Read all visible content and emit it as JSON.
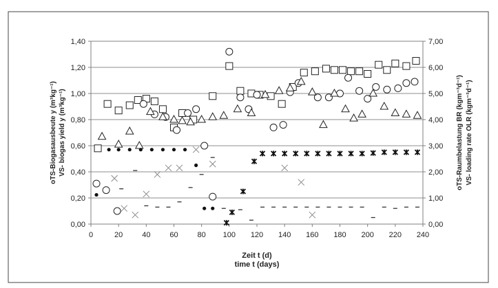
{
  "chart_data": {
    "type": "scatter",
    "xlabel_line1": "Zeit t (d)",
    "xlabel_line2": "time t (days)",
    "ylabel_left_line1": "oTS-Biogasausbeute y (m³kg⁻¹)",
    "ylabel_left_line2": "VS- biogas yield y (m³kg⁻¹)",
    "ylabel_right_line1": "oTS-Raumbelastung BR (kgm⁻³d⁻¹)",
    "ylabel_right_line2": "VS- loading rate OLR (kgm⁻³d⁻¹)",
    "xlim": [
      0,
      240
    ],
    "ylim_left": [
      0,
      1.4
    ],
    "ylim_right": [
      0,
      7
    ],
    "x_ticks": [
      0,
      20,
      40,
      60,
      80,
      100,
      120,
      140,
      160,
      180,
      200,
      220,
      240
    ],
    "y_ticks_left": [
      "0,00",
      "0,20",
      "0,40",
      "0,60",
      "0,80",
      "1,00",
      "1,20",
      "1,40"
    ],
    "y_ticks_right": [
      "0,00",
      "1,00",
      "2,00",
      "3,00",
      "4,00",
      "5,00",
      "6,00",
      "7,00"
    ],
    "grid": "horizontal",
    "series": [
      {
        "marker": "square",
        "axis": "left",
        "points": [
          [
            5,
            0.58
          ],
          [
            12,
            0.92
          ],
          [
            20,
            0.87
          ],
          [
            28,
            0.91
          ],
          [
            34,
            0.95
          ],
          [
            40,
            0.96
          ],
          [
            46,
            0.94
          ],
          [
            52,
            0.88
          ],
          [
            60,
            0.74
          ],
          [
            66,
            0.85
          ],
          [
            74,
            0.8
          ],
          [
            88,
            0.98
          ],
          [
            100,
            1.21
          ],
          [
            108,
            1.02
          ],
          [
            116,
            1.0
          ],
          [
            122,
            0.99
          ],
          [
            130,
            0.98
          ],
          [
            138,
            0.92
          ],
          [
            146,
            1.05
          ],
          [
            154,
            1.16
          ],
          [
            162,
            1.17
          ],
          [
            170,
            1.19
          ],
          [
            176,
            1.18
          ],
          [
            182,
            1.18
          ],
          [
            188,
            1.17
          ],
          [
            194,
            1.17
          ],
          [
            200,
            1.15
          ],
          [
            208,
            1.22
          ],
          [
            214,
            1.18
          ],
          [
            220,
            1.23
          ],
          [
            228,
            1.21
          ],
          [
            235,
            1.25
          ]
        ]
      },
      {
        "marker": "circle",
        "axis": "left",
        "points": [
          [
            4,
            0.31
          ],
          [
            11,
            0.26
          ],
          [
            19,
            0.1
          ],
          [
            38,
            0.92
          ],
          [
            46,
            0.84
          ],
          [
            54,
            0.82
          ],
          [
            62,
            0.72
          ],
          [
            70,
            0.85
          ],
          [
            76,
            0.88
          ],
          [
            82,
            0.6
          ],
          [
            88,
            0.21
          ],
          [
            100,
            1.32
          ],
          [
            108,
            0.97
          ],
          [
            114,
            0.88
          ],
          [
            120,
            0.99
          ],
          [
            132,
            0.74
          ],
          [
            139,
            0.76
          ],
          [
            144,
            1.01
          ],
          [
            150,
            1.08
          ],
          [
            164,
            0.97
          ],
          [
            172,
            0.97
          ],
          [
            180,
            1.0
          ],
          [
            186,
            1.12
          ],
          [
            194,
            1.02
          ],
          [
            200,
            0.96
          ],
          [
            206,
            1.05
          ],
          [
            214,
            1.03
          ],
          [
            222,
            1.04
          ],
          [
            228,
            1.08
          ],
          [
            234,
            1.09
          ]
        ]
      },
      {
        "marker": "triangle",
        "axis": "right",
        "points": [
          [
            8,
            3.35
          ],
          [
            20,
            3.05
          ],
          [
            28,
            3.55
          ],
          [
            35,
            3.0
          ],
          [
            43,
            4.3
          ],
          [
            52,
            4.1
          ],
          [
            60,
            4.0
          ],
          [
            66,
            3.95
          ],
          [
            72,
            3.9
          ],
          [
            80,
            4.0
          ],
          [
            88,
            4.1
          ],
          [
            96,
            4.15
          ],
          [
            106,
            4.4
          ],
          [
            116,
            4.25
          ],
          [
            126,
            4.95
          ],
          [
            136,
            5.1
          ],
          [
            144,
            5.2
          ],
          [
            152,
            5.45
          ],
          [
            160,
            5.05
          ],
          [
            168,
            3.8
          ],
          [
            176,
            5.0
          ],
          [
            184,
            4.4
          ],
          [
            190,
            4.05
          ],
          [
            196,
            4.2
          ],
          [
            204,
            5.0
          ],
          [
            212,
            4.5
          ],
          [
            220,
            4.25
          ],
          [
            228,
            4.2
          ],
          [
            236,
            4.15
          ]
        ]
      },
      {
        "marker": "dot",
        "axis": "right",
        "points": [
          [
            4,
            1.12
          ],
          [
            13,
            2.85
          ],
          [
            20,
            2.85
          ],
          [
            28,
            2.85
          ],
          [
            36,
            2.85
          ],
          [
            44,
            2.85
          ],
          [
            52,
            2.85
          ],
          [
            60,
            2.85
          ],
          [
            68,
            2.85
          ],
          [
            76,
            2.25
          ],
          [
            82,
            0.6
          ],
          [
            88,
            0.6
          ]
        ]
      },
      {
        "marker": "asterisk",
        "axis": "right",
        "points": [
          [
            98,
            0.05
          ],
          [
            102,
            0.45
          ],
          [
            110,
            1.25
          ],
          [
            118,
            2.4
          ],
          [
            124,
            2.7
          ],
          [
            132,
            2.7
          ],
          [
            140,
            2.7
          ],
          [
            148,
            2.7
          ],
          [
            156,
            2.7
          ],
          [
            164,
            2.7
          ],
          [
            172,
            2.7
          ],
          [
            180,
            2.7
          ],
          [
            188,
            2.7
          ],
          [
            196,
            2.7
          ],
          [
            204,
            2.72
          ],
          [
            212,
            2.75
          ],
          [
            220,
            2.75
          ],
          [
            228,
            2.75
          ],
          [
            236,
            2.75
          ]
        ]
      },
      {
        "marker": "cross",
        "axis": "right",
        "points": [
          [
            17,
            1.75
          ],
          [
            24,
            0.6
          ],
          [
            32,
            0.35
          ],
          [
            40,
            1.15
          ],
          [
            48,
            1.9
          ],
          [
            56,
            2.15
          ],
          [
            64,
            2.15
          ],
          [
            76,
            2.85
          ],
          [
            88,
            2.3
          ],
          [
            140,
            2.15
          ],
          [
            152,
            1.6
          ],
          [
            160,
            0.35
          ]
        ]
      },
      {
        "marker": "dash",
        "axis": "right",
        "points": [
          [
            22,
            1.35
          ],
          [
            32,
            2.05
          ],
          [
            40,
            0.7
          ],
          [
            48,
            0.65
          ],
          [
            56,
            0.65
          ],
          [
            64,
            0.85
          ],
          [
            72,
            1.4
          ],
          [
            80,
            1.9
          ],
          [
            88,
            2.55
          ],
          [
            96,
            0.6
          ],
          [
            108,
            0.55
          ],
          [
            116,
            0.15
          ],
          [
            124,
            0.65
          ],
          [
            132,
            0.65
          ],
          [
            140,
            0.65
          ],
          [
            148,
            0.65
          ],
          [
            156,
            0.65
          ],
          [
            164,
            0.65
          ],
          [
            172,
            0.65
          ],
          [
            180,
            0.65
          ],
          [
            188,
            0.65
          ],
          [
            196,
            0.65
          ],
          [
            204,
            0.25
          ],
          [
            212,
            0.65
          ],
          [
            220,
            0.6
          ],
          [
            228,
            0.65
          ],
          [
            236,
            0.65
          ]
        ]
      }
    ]
  }
}
